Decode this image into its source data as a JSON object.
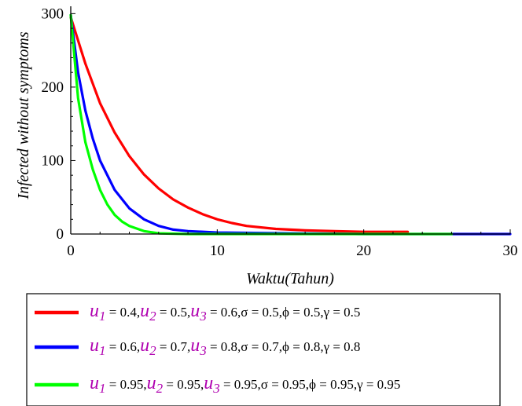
{
  "chart_data": {
    "type": "line",
    "xlabel": "Waktu(Tahun)",
    "ylabel": "Infected without symptoms",
    "xlim": [
      0,
      30
    ],
    "ylim": [
      0,
      310
    ],
    "x_ticks": [
      "0",
      "10",
      "20",
      "30"
    ],
    "y_ticks": [
      "0",
      "100",
      "200",
      "300"
    ],
    "grid": false,
    "legend_position": "bottom",
    "series": [
      {
        "label": "u1 = 0.4, u2 = 0.5, u3 = 0.6, σ = 0.5, φ = 0.5, γ = 0.5",
        "color": "#ff0000",
        "x": [
          0,
          1,
          2,
          3,
          4,
          5,
          6,
          7,
          8,
          9,
          10,
          11,
          12,
          14,
          16,
          18,
          20,
          23
        ],
        "y": [
          295,
          232,
          178,
          138,
          106,
          81,
          62,
          47,
          36,
          27,
          20,
          15,
          11,
          7,
          5,
          4,
          3,
          3
        ]
      },
      {
        "label": "u1 = 0.6, u2 = 0.7, u3 = 0.8, σ = 0.7, φ = 0.8, γ = 0.8",
        "color": "#0000ff",
        "x": [
          0,
          0.5,
          1,
          1.5,
          2,
          3,
          4,
          5,
          6,
          7,
          8,
          10,
          15,
          20,
          26,
          30
        ],
        "y": [
          298,
          220,
          168,
          130,
          100,
          60,
          35,
          20,
          11,
          6,
          4,
          2,
          1,
          0,
          0,
          0
        ]
      },
      {
        "label": "u1 = 0.95, u2 = 0.95, u3 = 0.95, σ = 0.95, φ = 0.95, γ = 0.95",
        "color": "#00ff00",
        "x": [
          0,
          0.5,
          1,
          1.5,
          2,
          2.5,
          3,
          3.5,
          4,
          5,
          6,
          8,
          12,
          20,
          26
        ],
        "y": [
          298,
          185,
          125,
          88,
          60,
          40,
          26,
          17,
          11,
          4,
          1,
          0,
          0,
          0,
          0
        ]
      }
    ]
  },
  "legend": [
    {
      "color": "#ff0000",
      "u1": "0.4",
      "u2": "0.5",
      "u3": "0.6",
      "tail": ",σ = 0.5,ϕ = 0.5,γ = 0.5"
    },
    {
      "color": "#0000ff",
      "u1": "0.6",
      "u2": "0.7",
      "u3": "0.8",
      "tail": ",σ = 0.7,ϕ = 0.8,γ = 0.8"
    },
    {
      "color": "#00ff00",
      "u1": "0.95",
      "u2": "0.95",
      "u3": "0.95",
      "tail": ",σ = 0.95,ϕ = 0.95,γ = 0.95"
    }
  ],
  "legend_symbols": {
    "var": "u",
    "eq": " = ",
    "sub1": "1",
    "sub2": "2",
    "sub3": "3"
  }
}
